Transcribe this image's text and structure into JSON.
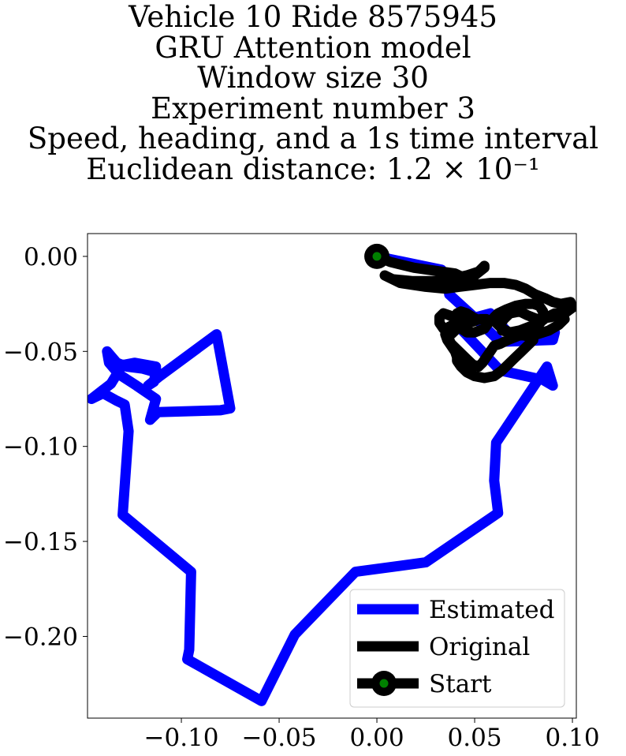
{
  "title_lines": [
    "Vehicle 10 Ride 8575945",
    "GRU Attention model",
    "Window size 30",
    "Experiment number 3",
    "Speed, heading, and a 1s time interval",
    "Euclidean distance: 1.2 × 10⁻¹"
  ],
  "chart_data": {
    "type": "line",
    "title": "Vehicle 10 Ride 8575945\nGRU Attention model\nWindow size 30\nExperiment number 3\nSpeed, heading, and a 1s time interval\nEuclidean distance: 1.2 × 10⁻¹",
    "xlabel": "",
    "ylabel": "",
    "xlim": [
      -0.148,
      0.102
    ],
    "ylim": [
      -0.243,
      0.012
    ],
    "xticks": [
      -0.1,
      -0.05,
      0.0,
      0.05,
      0.1
    ],
    "xtick_labels": [
      "−0.10",
      "−0.05",
      "0.00",
      "0.05",
      "0.10"
    ],
    "yticks": [
      0.0,
      -0.05,
      -0.1,
      -0.15,
      -0.2
    ],
    "ytick_labels": [
      "0.00",
      "−0.05",
      "−0.10",
      "−0.15",
      "−0.20"
    ],
    "grid": false,
    "legend_position": "lower-right",
    "series": [
      {
        "name": "Estimated",
        "color": "#0000ff",
        "x": [
          0.0,
          0.033,
          0.036,
          0.037,
          0.053,
          0.063,
          0.09,
          0.091,
          0.067,
          0.058,
          0.04,
          0.063,
          0.085,
          0.09,
          0.087,
          0.061,
          0.06,
          0.062,
          0.025,
          -0.011,
          -0.042,
          -0.059,
          -0.097,
          -0.096,
          -0.095,
          -0.13,
          -0.127,
          -0.129,
          -0.133,
          -0.14,
          -0.146,
          -0.136,
          -0.13,
          -0.129,
          -0.124,
          -0.113,
          -0.113,
          -0.114,
          -0.117,
          -0.111,
          -0.082,
          -0.075,
          -0.08,
          -0.112,
          -0.116,
          -0.113,
          -0.123,
          -0.132,
          -0.137,
          -0.138,
          -0.133,
          -0.128,
          -0.12,
          -0.113
        ],
        "y": [
          0.0,
          -0.007,
          -0.011,
          -0.02,
          -0.035,
          -0.045,
          -0.044,
          -0.04,
          -0.04,
          -0.03,
          -0.035,
          -0.06,
          -0.065,
          -0.068,
          -0.058,
          -0.098,
          -0.118,
          -0.135,
          -0.161,
          -0.166,
          -0.199,
          -0.234,
          -0.212,
          -0.207,
          -0.166,
          -0.136,
          -0.092,
          -0.078,
          -0.076,
          -0.072,
          -0.075,
          -0.067,
          -0.057,
          -0.057,
          -0.056,
          -0.058,
          -0.06,
          -0.066,
          -0.068,
          -0.063,
          -0.041,
          -0.08,
          -0.081,
          -0.082,
          -0.086,
          -0.075,
          -0.068,
          -0.062,
          -0.056,
          -0.05,
          -0.056,
          -0.058,
          -0.059,
          -0.061
        ]
      },
      {
        "name": "Original",
        "color": "#000000",
        "x": [
          0.0,
          0.007,
          0.019,
          0.033,
          0.04,
          0.044,
          0.05,
          0.055,
          0.055,
          0.052,
          0.046,
          0.038,
          0.029,
          0.018,
          0.008,
          0.004,
          0.012,
          0.025,
          0.035,
          0.042,
          0.05,
          0.058,
          0.065,
          0.071,
          0.076,
          0.081,
          0.086,
          0.09,
          0.094,
          0.099,
          0.1,
          0.096,
          0.089,
          0.082,
          0.077,
          0.073,
          0.068,
          0.065,
          0.063,
          0.064,
          0.068,
          0.073,
          0.078,
          0.083,
          0.087,
          0.091,
          0.095,
          0.096,
          0.093,
          0.088,
          0.082,
          0.077,
          0.072,
          0.068,
          0.064,
          0.061,
          0.06,
          0.062,
          0.066,
          0.071,
          0.076,
          0.08,
          0.083,
          0.085,
          0.085,
          0.082,
          0.077,
          0.072,
          0.067,
          0.063,
          0.06,
          0.058,
          0.056,
          0.054,
          0.052,
          0.049,
          0.046,
          0.042,
          0.038,
          0.036,
          0.035,
          0.037,
          0.039,
          0.041,
          0.04,
          0.038,
          0.036,
          0.034,
          0.032,
          0.032,
          0.034,
          0.037,
          0.041,
          0.045,
          0.049,
          0.053,
          0.056,
          0.057,
          0.055,
          0.05,
          0.046,
          0.043,
          0.041,
          0.04,
          0.041,
          0.043,
          0.046,
          0.049,
          0.051,
          0.05,
          0.047,
          0.043,
          0.039,
          0.036,
          0.035,
          0.036,
          0.038,
          0.04,
          0.041,
          0.041,
          0.043,
          0.046,
          0.05,
          0.055,
          0.06,
          0.064,
          0.067,
          0.07,
          0.074,
          0.077,
          0.079,
          0.08,
          0.08
        ],
        "y": [
          0.0,
          -0.003,
          -0.006,
          -0.008,
          -0.009,
          -0.011,
          -0.01,
          -0.006,
          -0.005,
          -0.008,
          -0.01,
          -0.012,
          -0.013,
          -0.013,
          -0.012,
          -0.01,
          -0.014,
          -0.016,
          -0.017,
          -0.016,
          -0.015,
          -0.014,
          -0.014,
          -0.015,
          -0.017,
          -0.02,
          -0.022,
          -0.024,
          -0.025,
          -0.024,
          -0.027,
          -0.03,
          -0.032,
          -0.033,
          -0.031,
          -0.029,
          -0.03,
          -0.033,
          -0.036,
          -0.039,
          -0.04,
          -0.039,
          -0.037,
          -0.035,
          -0.032,
          -0.03,
          -0.03,
          -0.033,
          -0.036,
          -0.039,
          -0.041,
          -0.042,
          -0.041,
          -0.04,
          -0.038,
          -0.035,
          -0.032,
          -0.03,
          -0.028,
          -0.026,
          -0.025,
          -0.025,
          -0.026,
          -0.029,
          -0.033,
          -0.037,
          -0.04,
          -0.042,
          -0.044,
          -0.046,
          -0.047,
          -0.05,
          -0.053,
          -0.056,
          -0.058,
          -0.057,
          -0.054,
          -0.05,
          -0.046,
          -0.042,
          -0.039,
          -0.037,
          -0.036,
          -0.037,
          -0.039,
          -0.041,
          -0.04,
          -0.038,
          -0.035,
          -0.032,
          -0.03,
          -0.031,
          -0.033,
          -0.034,
          -0.034,
          -0.033,
          -0.033,
          -0.035,
          -0.038,
          -0.04,
          -0.04,
          -0.038,
          -0.035,
          -0.032,
          -0.03,
          -0.029,
          -0.03,
          -0.032,
          -0.033,
          -0.034,
          -0.035,
          -0.036,
          -0.037,
          -0.038,
          -0.041,
          -0.044,
          -0.047,
          -0.05,
          -0.053,
          -0.055,
          -0.058,
          -0.061,
          -0.063,
          -0.064,
          -0.063,
          -0.06,
          -0.057,
          -0.054,
          -0.05,
          -0.047,
          -0.045,
          -0.044,
          -0.044
        ]
      }
    ],
    "start_point": {
      "name": "Start",
      "x": 0.0,
      "y": 0.0,
      "marker_edge": "#000000",
      "marker_face": "#008000"
    },
    "legend": [
      {
        "label": "Estimated",
        "color": "#0000ff",
        "marker": false
      },
      {
        "label": "Original",
        "color": "#000000",
        "marker": false
      },
      {
        "label": "Start",
        "color": "#000000",
        "marker": true,
        "marker_face": "#008000"
      }
    ]
  }
}
